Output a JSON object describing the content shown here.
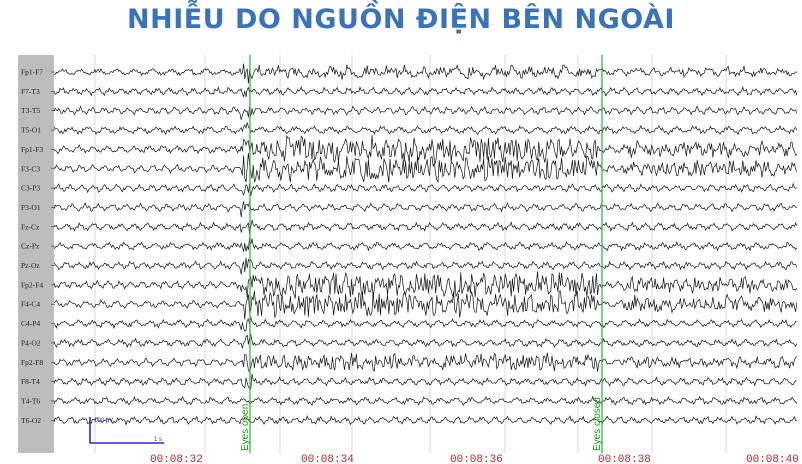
{
  "title": "NHIỄU DO NGUỒN ĐIỆN BÊN NGOÀI",
  "channels": [
    "Fp1-F7",
    "F7-T3",
    "T3-T5",
    "T5-O1",
    "Fp1-F3",
    "F3-C3",
    "C3-P3",
    "P3-O1",
    "Fz-Cz",
    "Cz-Pz",
    "Pz-Oz",
    "Fp2-F4",
    "F4-C4",
    "C4-P4",
    "P4-O2",
    "Fp2-F8",
    "F8-T4",
    "T4-T6",
    "T6-O2"
  ],
  "time_labels": [
    "00:08:32",
    "00:08:34",
    "00:08:36",
    "00:08:38",
    "00:08:40"
  ],
  "events": [
    {
      "label": "Eyes open"
    },
    {
      "label": "Eyes closed"
    }
  ],
  "scale": {
    "amplitude": "100 µV",
    "time": "1 s"
  },
  "colors": {
    "title": "#3a73b8",
    "trace": "#111111",
    "event_marker": "#2fbf2f",
    "time_label": "#b52a2a",
    "scale_bar": "#2c2cc0",
    "grid": "#c9c9c9",
    "left_bar": "#bdbdbd"
  }
}
